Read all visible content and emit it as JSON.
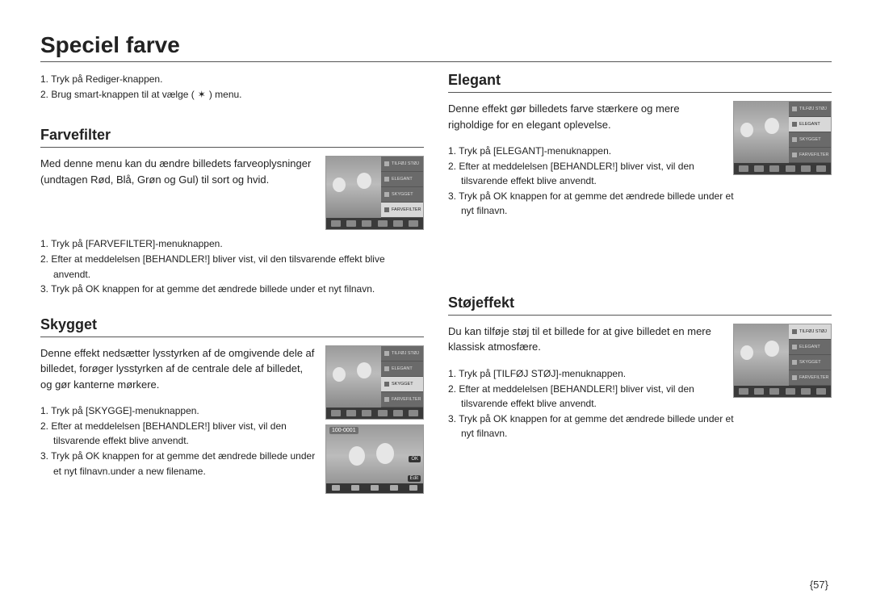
{
  "page_title": "Speciel farve",
  "intro": {
    "line1": "1. Tryk på Rediger-knappen.",
    "line2_pre": "2. Brug smart-knappen til at vælge (",
    "line2_post": ") menu.",
    "icon_glyph": "✶"
  },
  "cam_menu_items": [
    "TILFØJ STØJ",
    "ELEGANT",
    "SKYGGET",
    "FARVEFILTER"
  ],
  "farvefilter": {
    "heading": "Farvefilter",
    "desc": "Med denne menu kan du ændre billedets farveoplysninger (undtagen Rød, Blå, Grøn og Gul) til sort og hvid.",
    "step1": "1. Tryk på [FARVEFILTER]-menuknappen.",
    "step2": "2. Efter at meddelelsen [BEHANDLER!] bliver vist, vil den tilsvarende effekt blive anvendt.",
    "step3": "3. Tryk på OK knappen for at gemme det ændrede billede under et nyt filnavn.",
    "highlight_index": 3
  },
  "skygget": {
    "heading": "Skygget",
    "desc": "Denne effekt nedsætter lysstyrken af de omgivende dele af billedet, forøger lysstyrken af de centrale dele af billedet, og gør kanterne mørkere.",
    "step1": "1. Tryk på [SKYGGE]-menuknappen.",
    "step2": "2. Efter at meddelelsen [BEHANDLER!] bliver vist, vil den tilsvarende effekt blive anvendt.",
    "step3": "3. Tryk på OK knappen for at gemme det ændrede billede under et nyt filnavn.under a new filename.",
    "highlight_index": 2,
    "result_label": "100-0001",
    "result_edit": "Edit",
    "result_ok": "OK"
  },
  "elegant": {
    "heading": "Elegant",
    "desc": "Denne effekt gør billedets farve stærkere og mere righoldige for en elegant oplevelse.",
    "step1": "1. Tryk på [ELEGANT]-menuknappen.",
    "step2": "2. Efter at meddelelsen [BEHANDLER!] bliver vist, vil den tilsvarende effekt blive anvendt.",
    "step3": "3. Tryk på OK knappen for at gemme det ændrede billede under et nyt filnavn.",
    "highlight_index": 1
  },
  "stoj": {
    "heading": "Støjeffekt",
    "desc": "Du kan tilføje støj til et billede for at give billedet en mere klassisk atmosfære.",
    "step1": "1. Tryk på [TILFØJ STØJ]-menuknappen.",
    "step2": "2. Efter at meddelelsen [BEHANDLER!] bliver vist, vil den tilsvarende effekt blive anvendt.",
    "step3": "3. Tryk på OK knappen for at gemme det ændrede billede under et nyt filnavn.",
    "highlight_index": 0
  },
  "page_number": "{57}",
  "colors": {
    "text": "#222222",
    "rule": "#555555",
    "cam_bg": "#5a5a5a",
    "cam_menu_bg": "#6a6a6a",
    "cam_highlight": "#d8d8d8"
  }
}
